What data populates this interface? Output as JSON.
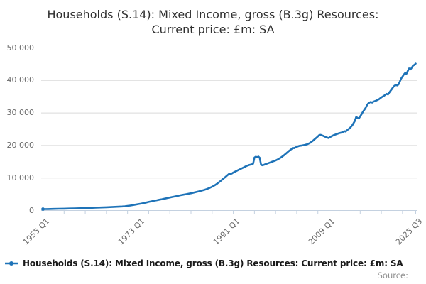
{
  "title": {
    "line1": "Households (S.14): Mixed Income, gross (B.3g) Resources:",
    "line2": "Current price: £m: SA"
  },
  "legend": {
    "label": "Households (S.14): Mixed Income, gross (B.3g) Resources: Current price: £m: SA"
  },
  "source_label": "Source:",
  "colors": {
    "series": "#1e73b8",
    "grid": "#dadada",
    "axis": "#c4d1e0",
    "tick_text": "#6b6b6b",
    "title_text": "#303030",
    "legend_text": "#1a1a1a",
    "source_text": "#8f8f8f"
  },
  "chart_data": {
    "type": "line",
    "title": "Households (S.14): Mixed Income, gross (B.3g) Resources: Current price: £m: SA",
    "xlabel": "",
    "ylabel": "",
    "grid": "horizontal only",
    "legend_position": "bottom-left",
    "x_axis": {
      "range": [
        1955.0,
        2025.5
      ],
      "labels": [
        "1955 Q1",
        "1973 Q1",
        "1991 Q1",
        "2009 Q1",
        "2025 Q3"
      ],
      "label_positions": [
        1955.0,
        1973.0,
        1991.0,
        2009.0,
        2025.5
      ],
      "minor_ticks": [
        1955,
        1959,
        1963,
        1967,
        1971,
        1975,
        1979,
        1983,
        1987,
        1991,
        1995,
        1999,
        2003,
        2007,
        2011,
        2015,
        2019,
        2023,
        2025.5
      ]
    },
    "y_axis": {
      "range": [
        0,
        50000
      ],
      "ticks": [
        0,
        10000,
        20000,
        30000,
        40000,
        50000
      ],
      "tick_labels": [
        "0",
        "10 000",
        "20 000",
        "30 000",
        "40 000",
        "50 000"
      ]
    },
    "series": [
      {
        "name": "Households (S.14): Mixed Income, gross (B.3g) Resources: Current price: £m: SA",
        "color": "#1e73b8",
        "points": [
          [
            1955,
            430
          ],
          [
            1956,
            465
          ],
          [
            1957,
            500
          ],
          [
            1958,
            535
          ],
          [
            1959,
            570
          ],
          [
            1960,
            615
          ],
          [
            1961,
            655
          ],
          [
            1962,
            700
          ],
          [
            1963,
            755
          ],
          [
            1964,
            815
          ],
          [
            1965,
            880
          ],
          [
            1966,
            945
          ],
          [
            1967,
            1010
          ],
          [
            1968,
            1080
          ],
          [
            1969,
            1155
          ],
          [
            1970,
            1255
          ],
          [
            1970.5,
            1320
          ],
          [
            1971,
            1410
          ],
          [
            1971.5,
            1525
          ],
          [
            1972,
            1670
          ],
          [
            1972.5,
            1805
          ],
          [
            1973,
            1955
          ],
          [
            1973.5,
            2105
          ],
          [
            1974,
            2275
          ],
          [
            1974.5,
            2455
          ],
          [
            1975,
            2645
          ],
          [
            1975.5,
            2825
          ],
          [
            1976,
            3005
          ],
          [
            1976.5,
            3155
          ],
          [
            1977,
            3310
          ],
          [
            1977.5,
            3480
          ],
          [
            1978,
            3655
          ],
          [
            1978.5,
            3830
          ],
          [
            1979,
            4005
          ],
          [
            1979.5,
            4180
          ],
          [
            1980,
            4355
          ],
          [
            1980.5,
            4530
          ],
          [
            1981,
            4695
          ],
          [
            1981.5,
            4850
          ],
          [
            1982,
            5000
          ],
          [
            1982.5,
            5150
          ],
          [
            1983,
            5310
          ],
          [
            1983.5,
            5495
          ],
          [
            1984,
            5695
          ],
          [
            1984.5,
            5900
          ],
          [
            1985,
            6110
          ],
          [
            1985.5,
            6340
          ],
          [
            1986,
            6620
          ],
          [
            1986.5,
            6940
          ],
          [
            1987,
            7320
          ],
          [
            1987.5,
            7780
          ],
          [
            1988,
            8320
          ],
          [
            1988.5,
            8960
          ],
          [
            1989,
            9640
          ],
          [
            1989.5,
            10290
          ],
          [
            1990,
            10980
          ],
          [
            1990.25,
            11330
          ],
          [
            1990.5,
            11230
          ],
          [
            1990.75,
            11390
          ],
          [
            1991,
            11680
          ],
          [
            1991.5,
            12080
          ],
          [
            1992,
            12480
          ],
          [
            1992.5,
            12880
          ],
          [
            1993,
            13280
          ],
          [
            1993.5,
            13680
          ],
          [
            1994,
            13990
          ],
          [
            1994.5,
            14190
          ],
          [
            1994.75,
            14380
          ],
          [
            1995,
            16280
          ],
          [
            1995.25,
            16540
          ],
          [
            1995.5,
            16400
          ],
          [
            1995.75,
            16590
          ],
          [
            1996,
            16190
          ],
          [
            1996.25,
            14080
          ],
          [
            1996.5,
            13900
          ],
          [
            1996.75,
            14010
          ],
          [
            1997,
            14190
          ],
          [
            1997.5,
            14480
          ],
          [
            1998,
            14790
          ],
          [
            1998.5,
            15090
          ],
          [
            1999,
            15390
          ],
          [
            1999.5,
            15780
          ],
          [
            2000,
            16280
          ],
          [
            2000.5,
            16880
          ],
          [
            2001,
            17580
          ],
          [
            2001.5,
            18280
          ],
          [
            2002,
            18880
          ],
          [
            2002.25,
            19280
          ],
          [
            2002.5,
            19180
          ],
          [
            2003,
            19580
          ],
          [
            2003.5,
            19880
          ],
          [
            2004,
            19990
          ],
          [
            2004.5,
            20180
          ],
          [
            2005,
            20380
          ],
          [
            2005.5,
            20780
          ],
          [
            2006,
            21380
          ],
          [
            2006.5,
            22080
          ],
          [
            2007,
            22780
          ],
          [
            2007.25,
            23180
          ],
          [
            2007.5,
            23280
          ],
          [
            2008,
            22980
          ],
          [
            2008.5,
            22580
          ],
          [
            2009,
            22290
          ],
          [
            2009.25,
            22480
          ],
          [
            2009.5,
            22780
          ],
          [
            2010,
            23180
          ],
          [
            2010.5,
            23480
          ],
          [
            2011,
            23780
          ],
          [
            2011.5,
            23980
          ],
          [
            2012,
            24380
          ],
          [
            2012.25,
            24280
          ],
          [
            2012.5,
            24680
          ],
          [
            2013,
            25280
          ],
          [
            2013.5,
            26180
          ],
          [
            2014,
            27580
          ],
          [
            2014.25,
            28780
          ],
          [
            2014.5,
            28480
          ],
          [
            2014.75,
            28280
          ],
          [
            2015,
            28980
          ],
          [
            2015.25,
            29580
          ],
          [
            2015.5,
            30280
          ],
          [
            2016,
            31480
          ],
          [
            2016.25,
            32280
          ],
          [
            2016.5,
            32880
          ],
          [
            2016.75,
            33180
          ],
          [
            2017,
            33380
          ],
          [
            2017.25,
            33180
          ],
          [
            2017.5,
            33480
          ],
          [
            2018,
            33780
          ],
          [
            2018.5,
            34180
          ],
          [
            2019,
            34780
          ],
          [
            2019.5,
            35280
          ],
          [
            2020,
            35880
          ],
          [
            2020.25,
            35680
          ],
          [
            2020.5,
            36280
          ],
          [
            2021,
            37380
          ],
          [
            2021.25,
            37980
          ],
          [
            2021.5,
            38380
          ],
          [
            2021.75,
            38580
          ],
          [
            2022,
            38480
          ],
          [
            2022.25,
            38780
          ],
          [
            2022.5,
            39680
          ],
          [
            2022.75,
            40580
          ],
          [
            2023,
            41180
          ],
          [
            2023.25,
            41780
          ],
          [
            2023.5,
            42280
          ],
          [
            2023.75,
            42080
          ],
          [
            2024,
            42880
          ],
          [
            2024.25,
            43680
          ],
          [
            2024.5,
            43380
          ],
          [
            2024.75,
            43880
          ],
          [
            2025,
            44580
          ],
          [
            2025.25,
            44780
          ],
          [
            2025.5,
            45180
          ]
        ]
      }
    ]
  }
}
